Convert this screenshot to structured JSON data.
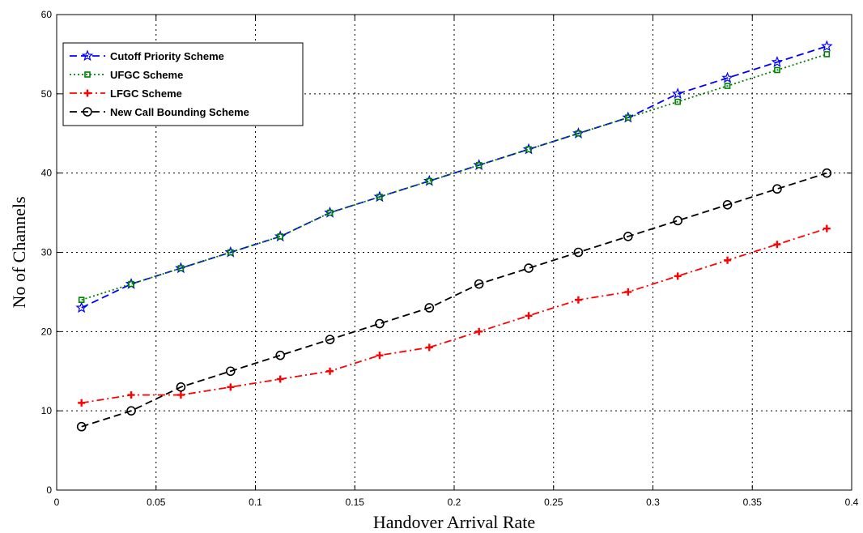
{
  "chart_data": {
    "type": "line",
    "title": "",
    "xlabel": "Handover Arrival Rate",
    "ylabel": "No of Channels",
    "xlim": [
      0,
      0.4
    ],
    "ylim": [
      0,
      60
    ],
    "xticks": [
      "0",
      "0.05",
      "0.1",
      "0.15",
      "0.2",
      "0.25",
      "0.3",
      "0.35",
      "0.4"
    ],
    "yticks": [
      "0",
      "10",
      "20",
      "30",
      "40",
      "50",
      "60"
    ],
    "grid": true,
    "legend_position": "top-left",
    "x": [
      0.0125,
      0.0375,
      0.0625,
      0.0875,
      0.1125,
      0.1375,
      0.1625,
      0.1875,
      0.2125,
      0.2375,
      0.2625,
      0.2875,
      0.3125,
      0.3375,
      0.3625,
      0.3875
    ],
    "series": [
      {
        "name": "Cutoff Priority Scheme",
        "color": "#0000ff",
        "dash": "dashed",
        "marker": "star",
        "values": [
          23,
          26,
          28,
          30,
          32,
          35,
          37,
          39,
          41,
          43,
          45,
          47,
          50,
          52,
          54,
          56
        ]
      },
      {
        "name": "UFGC Scheme",
        "color": "#008000",
        "dash": "dotted",
        "marker": "square",
        "values": [
          24,
          26,
          28,
          30,
          32,
          35,
          37,
          39,
          41,
          43,
          45,
          47,
          49,
          51,
          53,
          55
        ]
      },
      {
        "name": "LFGC Scheme",
        "color": "#ff0000",
        "dash": "dashdot",
        "marker": "plus",
        "values": [
          11,
          12,
          12,
          13,
          14,
          15,
          17,
          18,
          20,
          22,
          24,
          25,
          27,
          29,
          31,
          33
        ]
      },
      {
        "name": "New Call Bounding Scheme",
        "color": "#000000",
        "dash": "dashed",
        "marker": "circle",
        "values": [
          8,
          10,
          13,
          15,
          17,
          19,
          21,
          23,
          26,
          28,
          30,
          32,
          34,
          36,
          38,
          40
        ]
      }
    ]
  }
}
